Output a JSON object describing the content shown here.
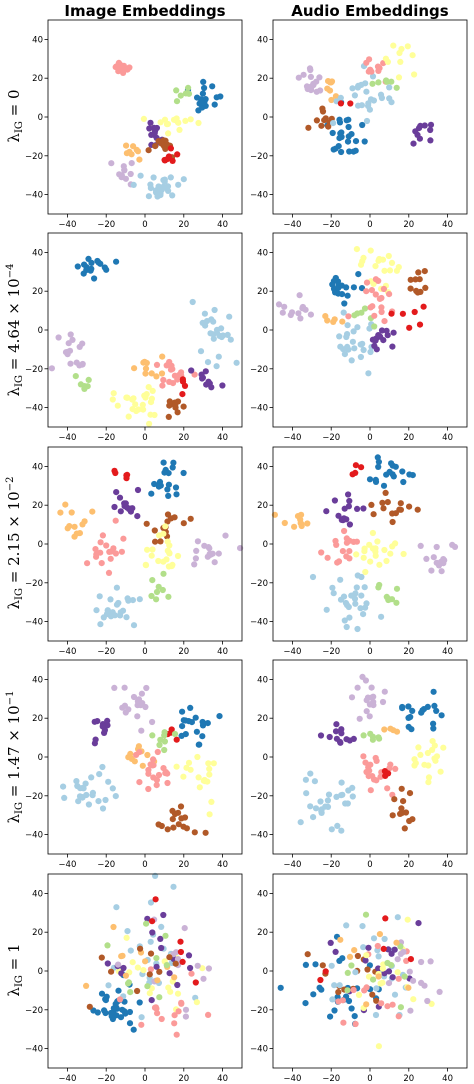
{
  "column_titles": [
    "Image Embeddings",
    "Audio Embeddings"
  ],
  "row_labels": [
    {
      "base": "λ",
      "sub": "IG",
      "eq": " = ",
      "mant": "0",
      "times": "",
      "pow": "",
      "exp": ""
    },
    {
      "base": "λ",
      "sub": "IG",
      "eq": " = ",
      "mant": "4.64",
      "times": " × ",
      "pow": "10",
      "exp": "−4"
    },
    {
      "base": "λ",
      "sub": "IG",
      "eq": " = ",
      "mant": "2.15",
      "times": " × ",
      "pow": "10",
      "exp": "−2"
    },
    {
      "base": "λ",
      "sub": "IG",
      "eq": " = ",
      "mant": "1.47",
      "times": " × ",
      "pow": "10",
      "exp": "−1"
    },
    {
      "base": "λ",
      "sub": "IG",
      "eq": " = ",
      "mant": "1",
      "times": "",
      "pow": "",
      "exp": ""
    }
  ],
  "palette": {
    "light_blue": "#a6cee3",
    "dark_blue": "#1f78b4",
    "light_green": "#b2df8a",
    "pink": "#fb9a99",
    "red": "#e31a1c",
    "orange": "#fdbf6f",
    "lavender": "#cab2d6",
    "purple": "#6a3d9a",
    "yellow": "#ffff99",
    "brown": "#b15928"
  },
  "chart_data": [
    {
      "type": "scatter",
      "row": 0,
      "col": 0,
      "title": "Image Embeddings",
      "xlim": [
        -50,
        50
      ],
      "ylim": [
        -50,
        50
      ],
      "xticks": [
        -40,
        -20,
        0,
        20,
        40
      ],
      "yticks": [
        -40,
        -20,
        0,
        20,
        40
      ],
      "grid": false,
      "clusters": [
        {
          "color": "pink",
          "cx": -12,
          "cy": 26,
          "sx": 3,
          "sy": 2,
          "n": 16
        },
        {
          "color": "dark_blue",
          "cx": 30,
          "cy": 8,
          "sx": 4,
          "sy": 4,
          "n": 18
        },
        {
          "color": "light_green",
          "cx": 18,
          "cy": 12,
          "sx": 3,
          "sy": 2,
          "n": 6
        },
        {
          "color": "yellow",
          "cx": 14,
          "cy": -2,
          "sx": 6,
          "sy": 3,
          "n": 16
        },
        {
          "color": "purple",
          "cx": 3,
          "cy": -8,
          "sx": 3,
          "sy": 3,
          "n": 12
        },
        {
          "color": "brown",
          "cx": 10,
          "cy": -15,
          "sx": 3,
          "sy": 3,
          "n": 12
        },
        {
          "color": "red",
          "cx": 14,
          "cy": -21,
          "sx": 2,
          "sy": 2,
          "n": 7
        },
        {
          "color": "orange",
          "cx": -5,
          "cy": -18,
          "sx": 2,
          "sy": 2,
          "n": 8
        },
        {
          "color": "lavender",
          "cx": -10,
          "cy": -29,
          "sx": 3,
          "sy": 3,
          "n": 12
        },
        {
          "color": "light_blue",
          "cx": 8,
          "cy": -36,
          "sx": 5,
          "sy": 3,
          "n": 25
        }
      ]
    },
    {
      "type": "scatter",
      "row": 0,
      "col": 1,
      "title": "Audio Embeddings",
      "xlim": [
        -50,
        50
      ],
      "ylim": [
        -50,
        50
      ],
      "xticks": [
        -40,
        -20,
        0,
        20,
        40
      ],
      "yticks": [
        -40,
        -20,
        0,
        20,
        40
      ],
      "grid": false,
      "clusters": [
        {
          "color": "lavender",
          "cx": -30,
          "cy": 17,
          "sx": 3,
          "sy": 4,
          "n": 16
        },
        {
          "color": "orange",
          "cx": -19,
          "cy": 13,
          "sx": 3,
          "sy": 3,
          "n": 8
        },
        {
          "color": "dark_blue",
          "cx": -14,
          "cy": -8,
          "sx": 5,
          "sy": 5,
          "n": 25
        },
        {
          "color": "brown",
          "cx": -25,
          "cy": -3,
          "sx": 3,
          "sy": 3,
          "n": 10
        },
        {
          "color": "light_blue",
          "cx": -2,
          "cy": 10,
          "sx": 7,
          "sy": 5,
          "n": 25
        },
        {
          "color": "pink",
          "cx": 3,
          "cy": 25,
          "sx": 3,
          "sy": 3,
          "n": 12
        },
        {
          "color": "yellow",
          "cx": 14,
          "cy": 30,
          "sx": 3,
          "sy": 4,
          "n": 10
        },
        {
          "color": "light_green",
          "cx": 8,
          "cy": 18,
          "sx": 3,
          "sy": 2,
          "n": 6
        },
        {
          "color": "purple",
          "cx": 27,
          "cy": -9,
          "sx": 3,
          "sy": 3,
          "n": 10
        },
        {
          "color": "red",
          "cx": -14,
          "cy": 7,
          "sx": 2,
          "sy": 2,
          "n": 2
        }
      ]
    },
    {
      "type": "scatter",
      "row": 1,
      "col": 0,
      "title": "",
      "xlim": [
        -50,
        50
      ],
      "ylim": [
        -50,
        50
      ],
      "xticks": [
        -40,
        -20,
        0,
        20,
        40
      ],
      "yticks": [
        -40,
        -20,
        0,
        20,
        40
      ],
      "grid": false,
      "clusters": [
        {
          "color": "dark_blue",
          "cx": -27,
          "cy": 32,
          "sx": 4,
          "sy": 4,
          "n": 16
        },
        {
          "color": "light_blue",
          "cx": 38,
          "cy": 3,
          "sx": 5,
          "sy": 8,
          "n": 25
        },
        {
          "color": "lavender",
          "cx": -38,
          "cy": -12,
          "sx": 5,
          "sy": 5,
          "n": 16
        },
        {
          "color": "light_green",
          "cx": -33,
          "cy": -26,
          "sx": 3,
          "sy": 2,
          "n": 6
        },
        {
          "color": "yellow",
          "cx": -3,
          "cy": -38,
          "sx": 6,
          "sy": 4,
          "n": 25
        },
        {
          "color": "orange",
          "cx": 3,
          "cy": -20,
          "sx": 3,
          "sy": 3,
          "n": 10
        },
        {
          "color": "pink",
          "cx": 12,
          "cy": -20,
          "sx": 5,
          "sy": 4,
          "n": 16
        },
        {
          "color": "brown",
          "cx": 16,
          "cy": -40,
          "sx": 3,
          "sy": 3,
          "n": 10
        },
        {
          "color": "purple",
          "cx": 32,
          "cy": -26,
          "sx": 3,
          "sy": 3,
          "n": 10
        },
        {
          "color": "red",
          "cx": 20,
          "cy": -28,
          "sx": 2,
          "sy": 2,
          "n": 4
        }
      ]
    },
    {
      "type": "scatter",
      "row": 1,
      "col": 1,
      "title": "",
      "xlim": [
        -50,
        50
      ],
      "ylim": [
        -50,
        50
      ],
      "xticks": [
        -40,
        -20,
        0,
        20,
        40
      ],
      "yticks": [
        -40,
        -20,
        0,
        20,
        40
      ],
      "grid": false,
      "clusters": [
        {
          "color": "lavender",
          "cx": -40,
          "cy": 9,
          "sx": 5,
          "sy": 4,
          "n": 12
        },
        {
          "color": "yellow",
          "cx": 5,
          "cy": 32,
          "sx": 6,
          "sy": 6,
          "n": 20
        },
        {
          "color": "dark_blue",
          "cx": -13,
          "cy": 20,
          "sx": 4,
          "sy": 4,
          "n": 18
        },
        {
          "color": "light_blue",
          "cx": -7,
          "cy": -8,
          "sx": 7,
          "sy": 6,
          "n": 25
        },
        {
          "color": "brown",
          "cx": 25,
          "cy": 25,
          "sx": 3,
          "sy": 3,
          "n": 10
        },
        {
          "color": "orange",
          "cx": -18,
          "cy": 5,
          "sx": 2,
          "sy": 2,
          "n": 5
        },
        {
          "color": "light_green",
          "cx": -3,
          "cy": 8,
          "sx": 3,
          "sy": 2,
          "n": 6
        },
        {
          "color": "pink",
          "cx": 5,
          "cy": 15,
          "sx": 6,
          "sy": 5,
          "n": 18
        },
        {
          "color": "purple",
          "cx": 7,
          "cy": -6,
          "sx": 4,
          "sy": 4,
          "n": 14
        },
        {
          "color": "red",
          "cx": 18,
          "cy": 5,
          "sx": 6,
          "sy": 5,
          "n": 6
        }
      ]
    },
    {
      "type": "scatter",
      "row": 2,
      "col": 0,
      "title": "",
      "xlim": [
        -50,
        50
      ],
      "ylim": [
        -50,
        50
      ],
      "xticks": [
        -40,
        -20,
        0,
        20,
        40
      ],
      "yticks": [
        -40,
        -20,
        0,
        20,
        40
      ],
      "grid": false,
      "clusters": [
        {
          "color": "red",
          "cx": -12,
          "cy": 36,
          "sx": 2,
          "sy": 1,
          "n": 5
        },
        {
          "color": "dark_blue",
          "cx": 13,
          "cy": 33,
          "sx": 5,
          "sy": 5,
          "n": 18
        },
        {
          "color": "orange",
          "cx": -35,
          "cy": 12,
          "sx": 4,
          "sy": 5,
          "n": 12
        },
        {
          "color": "purple",
          "cx": -10,
          "cy": 20,
          "sx": 4,
          "sy": 5,
          "n": 14
        },
        {
          "color": "brown",
          "cx": 10,
          "cy": 10,
          "sx": 5,
          "sy": 4,
          "n": 14
        },
        {
          "color": "pink",
          "cx": -20,
          "cy": -5,
          "sx": 5,
          "sy": 5,
          "n": 18
        },
        {
          "color": "yellow",
          "cx": 10,
          "cy": -5,
          "sx": 5,
          "sy": 6,
          "n": 20
        },
        {
          "color": "lavender",
          "cx": 32,
          "cy": -5,
          "sx": 5,
          "sy": 5,
          "n": 16
        },
        {
          "color": "light_blue",
          "cx": -15,
          "cy": -33,
          "sx": 6,
          "sy": 6,
          "n": 25
        },
        {
          "color": "light_green",
          "cx": 7,
          "cy": -23,
          "sx": 3,
          "sy": 3,
          "n": 8
        }
      ]
    },
    {
      "type": "scatter",
      "row": 2,
      "col": 1,
      "title": "",
      "xlim": [
        -50,
        50
      ],
      "ylim": [
        -50,
        50
      ],
      "xticks": [
        -40,
        -20,
        0,
        20,
        40
      ],
      "yticks": [
        -40,
        -20,
        0,
        20,
        40
      ],
      "grid": false,
      "clusters": [
        {
          "color": "red",
          "cx": -8,
          "cy": 38,
          "sx": 2,
          "sy": 2,
          "n": 4
        },
        {
          "color": "dark_blue",
          "cx": 10,
          "cy": 36,
          "sx": 5,
          "sy": 4,
          "n": 18
        },
        {
          "color": "orange",
          "cx": -38,
          "cy": 12,
          "sx": 5,
          "sy": 3,
          "n": 10
        },
        {
          "color": "purple",
          "cx": -12,
          "cy": 17,
          "sx": 4,
          "sy": 5,
          "n": 14
        },
        {
          "color": "brown",
          "cx": 10,
          "cy": 18,
          "sx": 5,
          "sy": 4,
          "n": 14
        },
        {
          "color": "pink",
          "cx": -15,
          "cy": 0,
          "sx": 5,
          "sy": 5,
          "n": 16
        },
        {
          "color": "yellow",
          "cx": 5,
          "cy": -5,
          "sx": 6,
          "sy": 6,
          "n": 20
        },
        {
          "color": "lavender",
          "cx": 35,
          "cy": -5,
          "sx": 4,
          "sy": 6,
          "n": 14
        },
        {
          "color": "light_blue",
          "cx": -12,
          "cy": -30,
          "sx": 8,
          "sy": 7,
          "n": 28
        },
        {
          "color": "light_green",
          "cx": 8,
          "cy": -25,
          "sx": 3,
          "sy": 4,
          "n": 8
        }
      ]
    },
    {
      "type": "scatter",
      "row": 3,
      "col": 0,
      "title": "",
      "xlim": [
        -50,
        50
      ],
      "ylim": [
        -50,
        50
      ],
      "xticks": [
        -40,
        -20,
        0,
        20,
        40
      ],
      "yticks": [
        -40,
        -20,
        0,
        20,
        40
      ],
      "grid": false,
      "clusters": [
        {
          "color": "lavender",
          "cx": -5,
          "cy": 28,
          "sx": 5,
          "sy": 6,
          "n": 18
        },
        {
          "color": "dark_blue",
          "cx": 25,
          "cy": 20,
          "sx": 5,
          "sy": 6,
          "n": 18
        },
        {
          "color": "purple",
          "cx": -22,
          "cy": 13,
          "sx": 3,
          "sy": 3,
          "n": 10
        },
        {
          "color": "red",
          "cx": 15,
          "cy": 14,
          "sx": 3,
          "sy": 2,
          "n": 4
        },
        {
          "color": "light_green",
          "cx": 8,
          "cy": 8,
          "sx": 3,
          "sy": 3,
          "n": 8
        },
        {
          "color": "orange",
          "cx": -5,
          "cy": 0,
          "sx": 4,
          "sy": 3,
          "n": 10
        },
        {
          "color": "pink",
          "cx": 5,
          "cy": -8,
          "sx": 6,
          "sy": 5,
          "n": 20
        },
        {
          "color": "yellow",
          "cx": 28,
          "cy": -8,
          "sx": 5,
          "sy": 6,
          "n": 18
        },
        {
          "color": "light_blue",
          "cx": -27,
          "cy": -20,
          "sx": 6,
          "sy": 7,
          "n": 25
        },
        {
          "color": "brown",
          "cx": 18,
          "cy": -33,
          "sx": 5,
          "sy": 4,
          "n": 16
        }
      ]
    },
    {
      "type": "scatter",
      "row": 3,
      "col": 1,
      "title": "",
      "xlim": [
        -50,
        50
      ],
      "ylim": [
        -50,
        50
      ],
      "xticks": [
        -40,
        -20,
        0,
        20,
        40
      ],
      "yticks": [
        -40,
        -20,
        0,
        20,
        40
      ],
      "grid": false,
      "clusters": [
        {
          "color": "lavender",
          "cx": 0,
          "cy": 28,
          "sx": 5,
          "sy": 6,
          "n": 18
        },
        {
          "color": "dark_blue",
          "cx": 27,
          "cy": 22,
          "sx": 5,
          "sy": 6,
          "n": 18
        },
        {
          "color": "purple",
          "cx": -15,
          "cy": 10,
          "sx": 4,
          "sy": 4,
          "n": 12
        },
        {
          "color": "light_green",
          "cx": 2,
          "cy": 10,
          "sx": 3,
          "sy": 2,
          "n": 6
        },
        {
          "color": "orange",
          "cx": 12,
          "cy": 15,
          "sx": 2,
          "sy": 2,
          "n": 4
        },
        {
          "color": "pink",
          "cx": 5,
          "cy": -8,
          "sx": 6,
          "sy": 6,
          "n": 20
        },
        {
          "color": "yellow",
          "cx": 28,
          "cy": -3,
          "sx": 5,
          "sy": 6,
          "n": 18
        },
        {
          "color": "light_blue",
          "cx": -20,
          "cy": -22,
          "sx": 7,
          "sy": 7,
          "n": 28
        },
        {
          "color": "brown",
          "cx": 18,
          "cy": -28,
          "sx": 3,
          "sy": 6,
          "n": 12
        },
        {
          "color": "red",
          "cx": 8,
          "cy": -10,
          "sx": 3,
          "sy": 3,
          "n": 3
        }
      ]
    },
    {
      "type": "scatter",
      "row": 4,
      "col": 0,
      "title": "",
      "xlim": [
        -50,
        50
      ],
      "ylim": [
        -50,
        50
      ],
      "xticks": [
        -40,
        -20,
        0,
        20,
        40
      ],
      "yticks": [
        -40,
        -20,
        0,
        20,
        40
      ],
      "grid": false,
      "clusters": [
        {
          "color": "dark_blue",
          "cx": -15,
          "cy": -18,
          "sx": 6,
          "sy": 6,
          "n": 32
        },
        {
          "color": "light_blue",
          "cx": 2,
          "cy": 5,
          "sx": 13,
          "sy": 12,
          "n": 28
        },
        {
          "color": "yellow",
          "cx": 5,
          "cy": -2,
          "sx": 14,
          "sy": 12,
          "n": 18
        },
        {
          "color": "pink",
          "cx": 8,
          "cy": -15,
          "sx": 12,
          "sy": 10,
          "n": 16
        },
        {
          "color": "purple",
          "cx": 2,
          "cy": 10,
          "sx": 12,
          "sy": 10,
          "n": 16
        },
        {
          "color": "lavender",
          "cx": 15,
          "cy": 0,
          "sx": 12,
          "sy": 11,
          "n": 14
        },
        {
          "color": "orange",
          "cx": -5,
          "cy": 5,
          "sx": 12,
          "sy": 10,
          "n": 10
        },
        {
          "color": "brown",
          "cx": 0,
          "cy": 0,
          "sx": 12,
          "sy": 10,
          "n": 10
        },
        {
          "color": "light_green",
          "cx": 0,
          "cy": 0,
          "sx": 13,
          "sy": 12,
          "n": 10
        },
        {
          "color": "red",
          "cx": 10,
          "cy": 10,
          "sx": 12,
          "sy": 10,
          "n": 6
        }
      ]
    },
    {
      "type": "scatter",
      "row": 4,
      "col": 1,
      "title": "",
      "xlim": [
        -50,
        50
      ],
      "ylim": [
        -50,
        50
      ],
      "xticks": [
        -40,
        -20,
        0,
        20,
        40
      ],
      "yticks": [
        -40,
        -20,
        0,
        20,
        40
      ],
      "grid": false,
      "clusters": [
        {
          "color": "dark_blue",
          "cx": -15,
          "cy": -12,
          "sx": 10,
          "sy": 9,
          "n": 26
        },
        {
          "color": "brown",
          "cx": -12,
          "cy": -5,
          "sx": 10,
          "sy": 9,
          "n": 14
        },
        {
          "color": "light_blue",
          "cx": 5,
          "cy": 0,
          "sx": 13,
          "sy": 12,
          "n": 25
        },
        {
          "color": "purple",
          "cx": 0,
          "cy": 5,
          "sx": 12,
          "sy": 10,
          "n": 16
        },
        {
          "color": "pink",
          "cx": 5,
          "cy": -10,
          "sx": 12,
          "sy": 10,
          "n": 16
        },
        {
          "color": "yellow",
          "cx": 10,
          "cy": -5,
          "sx": 12,
          "sy": 10,
          "n": 16
        },
        {
          "color": "lavender",
          "cx": 22,
          "cy": 0,
          "sx": 10,
          "sy": 10,
          "n": 14
        },
        {
          "color": "light_green",
          "cx": 0,
          "cy": 0,
          "sx": 12,
          "sy": 10,
          "n": 10
        },
        {
          "color": "orange",
          "cx": 5,
          "cy": 5,
          "sx": 12,
          "sy": 10,
          "n": 8
        },
        {
          "color": "red",
          "cx": 0,
          "cy": 5,
          "sx": 10,
          "sy": 10,
          "n": 5
        }
      ]
    }
  ]
}
